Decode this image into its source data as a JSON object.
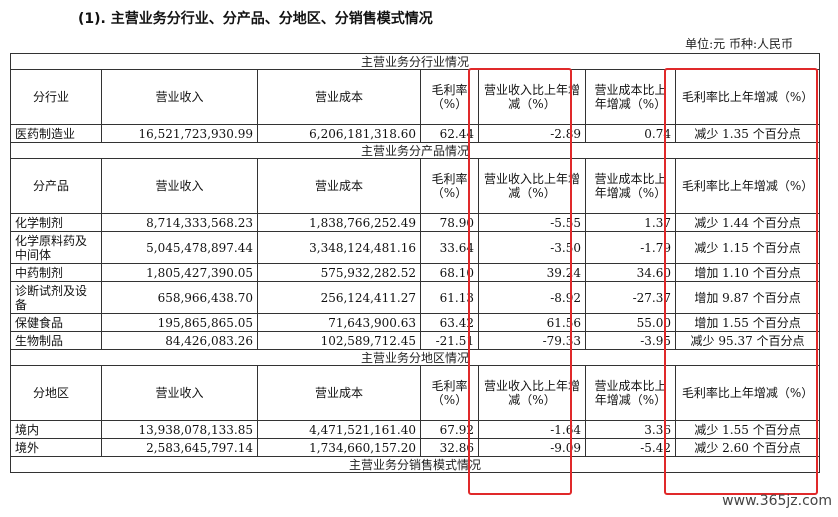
{
  "heading": "(1).  主营业务分行业、分产品、分地区、分销售模式情况",
  "unit_line": "单位:元   币种:人民币",
  "cols": {
    "revenue": "营业收入",
    "cost": "营业成本",
    "margin": "毛利率（%）",
    "rev_change": "营业收入比上年增减（%）",
    "cost_change": "营业成本比上年增减（%）",
    "margin_change": "毛利率比上年增减（%）"
  },
  "sections": {
    "industry": {
      "title": "主营业务分行业情况",
      "label": "分行业",
      "rows": [
        {
          "name": "医药制造业",
          "revenue": "16,521,723,930.99",
          "cost": "6,206,181,318.60",
          "margin": "62.44",
          "rev_change": "-2.89",
          "cost_change": "0.74",
          "margin_change": "减少 1.35 个百分点"
        }
      ]
    },
    "product": {
      "title": "主营业务分产品情况",
      "label": "分产品",
      "rows": [
        {
          "name": "化学制剂",
          "revenue": "8,714,333,568.23",
          "cost": "1,838,766,252.49",
          "margin": "78.90",
          "rev_change": "-5.55",
          "cost_change": "1.37",
          "margin_change": "减少 1.44 个百分点"
        },
        {
          "name": "化学原料药及中间体",
          "revenue": "5,045,478,897.44",
          "cost": "3,348,124,481.16",
          "margin": "33.64",
          "rev_change": "-3.50",
          "cost_change": "-1.79",
          "margin_change": "减少 1.15 个百分点"
        },
        {
          "name": "中药制剂",
          "revenue": "1,805,427,390.05",
          "cost": "575,932,282.52",
          "margin": "68.10",
          "rev_change": "39.24",
          "cost_change": "34.60",
          "margin_change": "增加 1.10 个百分点"
        },
        {
          "name": "诊断试剂及设备",
          "revenue": "658,966,438.70",
          "cost": "256,124,411.27",
          "margin": "61.13",
          "rev_change": "-8.92",
          "cost_change": "-27.37",
          "margin_change": "增加 9.87 个百分点"
        },
        {
          "name": "保健食品",
          "revenue": "195,865,865.05",
          "cost": "71,643,900.63",
          "margin": "63.42",
          "rev_change": "61.56",
          "cost_change": "55.00",
          "margin_change": "增加 1.55 个百分点"
        },
        {
          "name": "生物制品",
          "revenue": "84,426,083.26",
          "cost": "102,589,712.45",
          "margin": "-21.51",
          "rev_change": "-79.33",
          "cost_change": "-3.95",
          "margin_change": "减少 95.37 个百分点"
        }
      ]
    },
    "region": {
      "title": "主营业务分地区情况",
      "label": "分地区",
      "rows": [
        {
          "name": "境内",
          "revenue": "13,938,078,133.85",
          "cost": "4,471,521,161.40",
          "margin": "67.92",
          "rev_change": "-1.64",
          "cost_change": "3.36",
          "margin_change": "减少 1.55 个百分点"
        },
        {
          "name": "境外",
          "revenue": "2,583,645,797.14",
          "cost": "1,734,660,157.20",
          "margin": "32.86",
          "rev_change": "-9.09",
          "cost_change": "-5.42",
          "margin_change": "减少 2.60 个百分点"
        }
      ]
    },
    "sales": {
      "title": "主营业务分销售模式情况"
    }
  },
  "highlight_color": "#e0292a",
  "watermark": "www.365jz.com"
}
